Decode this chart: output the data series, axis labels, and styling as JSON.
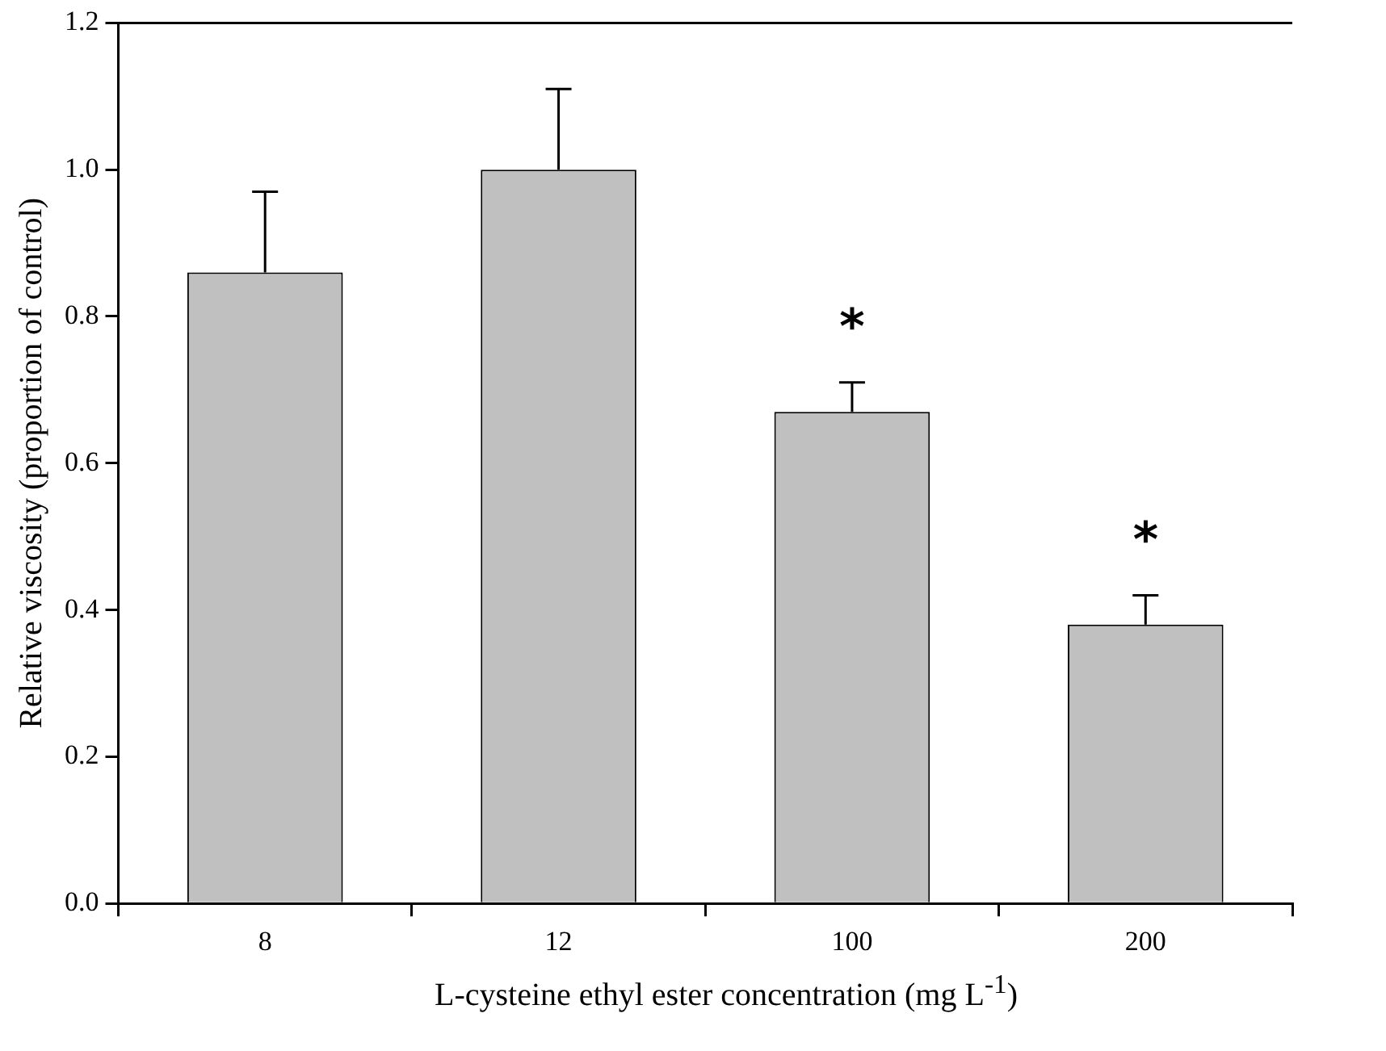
{
  "chart_data": {
    "type": "bar",
    "xlabel": "L-cysteine ethyl ester concentration (mg L$^{-1}$)",
    "ylabel": "Relative viscosity (proportion of control)",
    "categories": [
      "8",
      "12",
      "100",
      "200"
    ],
    "values": [
      0.86,
      1.0,
      0.67,
      0.38
    ],
    "errors": [
      [
        0.86,
        0.97
      ],
      [
        1.0,
        1.11
      ],
      [
        0.67,
        0.71
      ],
      [
        0.38,
        0.42
      ]
    ],
    "color": "#c0c0c0",
    "ylim": [
      0,
      1.2
    ],
    "yticks": [
      {
        "value": 0,
        "label": "0.0"
      },
      0.2,
      0.4,
      0.6,
      0.8,
      {
        "value": 1,
        "label": "1.0"
      },
      1.2
    ],
    "grid": false,
    "legend": false,
    "annotations": [
      "*",
      "*"
    ]
  }
}
